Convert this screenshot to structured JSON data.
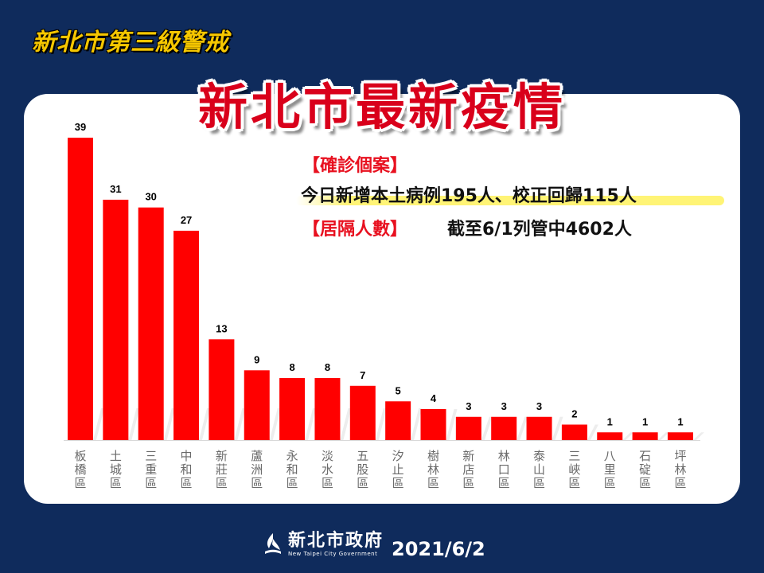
{
  "header": {
    "tag": "新北市第三級警戒",
    "title": "新北市最新疫情"
  },
  "info": {
    "confirmed_label": "【確診個案】",
    "confirmed_detail": "今日新增本土病例195人、校正回歸115人",
    "quarantine_label": "【居隔人數】",
    "quarantine_detail": "截至6/1列管中4602人"
  },
  "footer": {
    "logo_cn": "新北市政府",
    "logo_en": "New Taipei City Government",
    "date": "2021/6/2"
  },
  "colors": {
    "background": "#0f2b5c",
    "bar": "#ff0000",
    "title_red": "#d9001b",
    "tag_yellow": "#f6c700",
    "highlight": "#fff36e"
  },
  "chart_data": {
    "type": "bar",
    "categories": [
      "板橋區",
      "土城區",
      "三重區",
      "中和區",
      "新莊區",
      "蘆洲區",
      "永和區",
      "淡水區",
      "五股區",
      "汐止區",
      "樹林區",
      "新店區",
      "林口區",
      "泰山區",
      "三峽區",
      "八里區",
      "石碇區",
      "坪林區"
    ],
    "values": [
      39,
      31,
      30,
      27,
      13,
      9,
      8,
      8,
      7,
      5,
      4,
      3,
      3,
      3,
      2,
      1,
      1,
      1
    ],
    "title": "",
    "xlabel": "",
    "ylabel": "",
    "ylim": [
      0,
      39
    ],
    "grid": false,
    "data_labels": true,
    "legend": false
  }
}
